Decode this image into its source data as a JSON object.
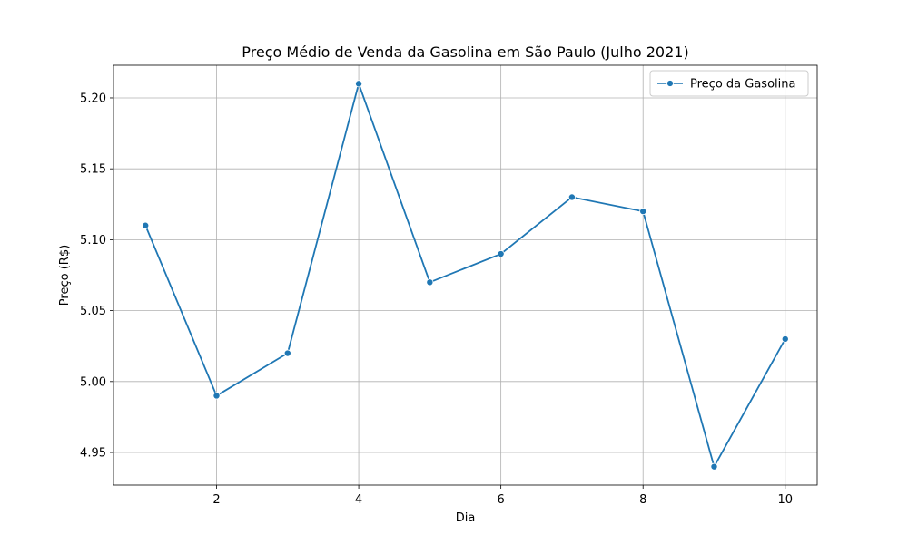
{
  "chart_data": {
    "type": "line",
    "title": "Preço Médio de Venda da Gasolina em São Paulo (Julho 2021)",
    "xlabel": "Dia",
    "ylabel": "Preço (R$)",
    "x": [
      1,
      2,
      3,
      4,
      5,
      6,
      7,
      8,
      9,
      10
    ],
    "series": [
      {
        "name": "Preço da Gasolina",
        "values": [
          5.11,
          4.99,
          5.02,
          5.21,
          5.07,
          5.09,
          5.13,
          5.12,
          4.94,
          5.03
        ],
        "color": "#1f77b4",
        "marker": "circle"
      }
    ],
    "xlim": [
      0.55,
      10.45
    ],
    "ylim": [
      4.927,
      5.223
    ],
    "x_ticks": [
      2,
      4,
      6,
      8,
      10
    ],
    "y_ticks": [
      4.95,
      5.0,
      5.05,
      5.1,
      5.15,
      5.2
    ],
    "x_tick_labels": [
      "2",
      "4",
      "6",
      "8",
      "10"
    ],
    "y_tick_labels": [
      "4.95",
      "5.00",
      "5.05",
      "5.10",
      "5.15",
      "5.20"
    ],
    "grid": true,
    "legend_position": "top-right"
  }
}
